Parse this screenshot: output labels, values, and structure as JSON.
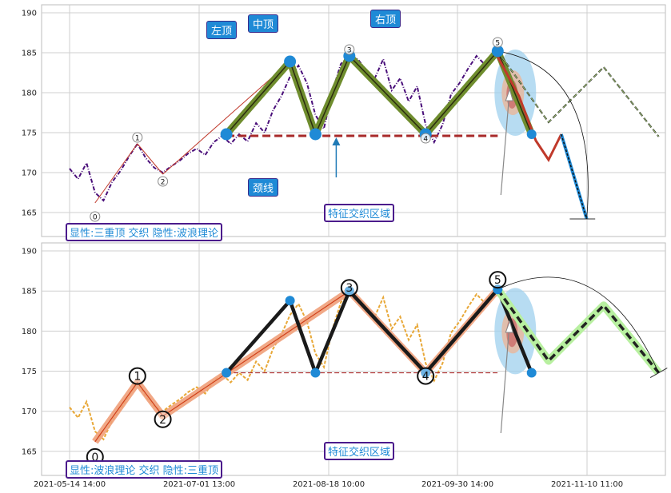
{
  "chart_data": [
    {
      "type": "line",
      "panel": "top",
      "ylim": [
        162,
        191
      ],
      "yticks": [
        165,
        170,
        175,
        180,
        185,
        190
      ],
      "x_labels": [
        "2021-05-14 14:00",
        "2021-07-01 13:00",
        "2021-08-18 10:00",
        "2021-09-30 14:00",
        "2021-11-10 11:00"
      ],
      "grid": true,
      "point_labels": [
        "0",
        "1",
        "2",
        "3",
        "4",
        "5"
      ],
      "annotations": {
        "left_top": "左顶",
        "mid_top": "中顶",
        "right_top": "右顶",
        "neckline": "颈线",
        "zone": "特征交织区域",
        "legend": "显性:三重顶 交织 隐性:波浪理论"
      },
      "price_series": [
        [
          0,
          170.5
        ],
        [
          2,
          169.2
        ],
        [
          4,
          171.2
        ],
        [
          6,
          167.5
        ],
        [
          8,
          166.5
        ],
        [
          10,
          168.8
        ],
        [
          12,
          170.2
        ],
        [
          14,
          172.0
        ],
        [
          16,
          173.6
        ],
        [
          18,
          171.8
        ],
        [
          20,
          170.6
        ],
        [
          22,
          170.0
        ],
        [
          24,
          170.8
        ],
        [
          26,
          171.5
        ],
        [
          28,
          172.4
        ],
        [
          30,
          173.0
        ],
        [
          32,
          172.2
        ],
        [
          34,
          173.8
        ],
        [
          36,
          174.6
        ],
        [
          38,
          173.6
        ],
        [
          40,
          174.8
        ],
        [
          42,
          173.9
        ],
        [
          44,
          176.2
        ],
        [
          46,
          175.0
        ],
        [
          48,
          177.8
        ],
        [
          50,
          179.6
        ],
        [
          52,
          182.0
        ],
        [
          54,
          183.4
        ],
        [
          56,
          181.2
        ],
        [
          58,
          177.2
        ],
        [
          60,
          175.5
        ],
        [
          62,
          180.2
        ],
        [
          64,
          183.6
        ],
        [
          66,
          184.6
        ],
        [
          68,
          184.2
        ],
        [
          70,
          182.8
        ],
        [
          72,
          181.8
        ],
        [
          74,
          184.2
        ],
        [
          76,
          180.3
        ],
        [
          78,
          181.8
        ],
        [
          80,
          178.9
        ],
        [
          82,
          180.8
        ],
        [
          84,
          176.0
        ],
        [
          86,
          173.8
        ],
        [
          88,
          176.0
        ],
        [
          90,
          179.8
        ],
        [
          92,
          181.2
        ],
        [
          94,
          183.0
        ],
        [
          96,
          184.6
        ],
        [
          98,
          183.5
        ],
        [
          100,
          184.8
        ],
        [
          101,
          184.4
        ]
      ],
      "swing_points": [
        {
          "label": "0",
          "x": 6,
          "y": 166.2
        },
        {
          "label": "1",
          "x": 16,
          "y": 173.6
        },
        {
          "label": "2",
          "x": 22,
          "y": 169.8
        },
        {
          "label": "3",
          "x": 66,
          "y": 185.2
        },
        {
          "label": "4",
          "x": 84,
          "y": 174.8
        },
        {
          "label": "5",
          "x": 101,
          "y": 185.2
        }
      ],
      "pattern_points": [
        {
          "x": 37,
          "y": 174.8
        },
        {
          "x": 52,
          "y": 183.9
        },
        {
          "x": 58,
          "y": 174.8
        },
        {
          "x": 66,
          "y": 184.6
        },
        {
          "x": 84,
          "y": 174.8
        },
        {
          "x": 101,
          "y": 185.2
        },
        {
          "x": 109,
          "y": 174.8
        }
      ],
      "neckline_y": 174.6,
      "wave_projection": [
        [
          101,
          185.2
        ],
        [
          113,
          176.3
        ],
        [
          126,
          183.2
        ],
        [
          139,
          174.5
        ]
      ],
      "decline_projection": [
        [
          101,
          184.5
        ],
        [
          106,
          179.6
        ],
        [
          110,
          174.0
        ],
        [
          113,
          171.6
        ],
        [
          116,
          174.8
        ],
        [
          122,
          164.2
        ]
      ]
    },
    {
      "type": "line",
      "panel": "bottom",
      "ylim": [
        162,
        191
      ],
      "yticks": [
        165,
        170,
        175,
        180,
        185,
        190
      ],
      "x_labels": [
        "2021-05-14 14:00",
        "2021-07-01 13:00",
        "2021-08-18 10:00",
        "2021-09-30 14:00",
        "2021-11-10 11:00"
      ],
      "grid": true,
      "point_labels": [
        "0",
        "1",
        "2",
        "3",
        "4",
        "5"
      ],
      "annotations": {
        "zone": "特征交织区域",
        "legend": "显性:波浪理论 交织 隐性:三重顶"
      },
      "price_series": [
        [
          0,
          170.5
        ],
        [
          2,
          169.2
        ],
        [
          4,
          171.2
        ],
        [
          6,
          167.5
        ],
        [
          8,
          166.5
        ],
        [
          10,
          168.8
        ],
        [
          12,
          170.2
        ],
        [
          14,
          172.0
        ],
        [
          16,
          173.6
        ],
        [
          18,
          171.8
        ],
        [
          20,
          170.6
        ],
        [
          22,
          170.0
        ],
        [
          24,
          170.8
        ],
        [
          26,
          171.5
        ],
        [
          28,
          172.4
        ],
        [
          30,
          173.0
        ],
        [
          32,
          172.2
        ],
        [
          34,
          173.8
        ],
        [
          36,
          174.6
        ],
        [
          38,
          173.6
        ],
        [
          40,
          174.8
        ],
        [
          42,
          173.9
        ],
        [
          44,
          176.2
        ],
        [
          46,
          175.0
        ],
        [
          48,
          177.8
        ],
        [
          50,
          179.6
        ],
        [
          52,
          182.0
        ],
        [
          54,
          183.4
        ],
        [
          56,
          181.2
        ],
        [
          58,
          177.2
        ],
        [
          60,
          175.5
        ],
        [
          62,
          180.2
        ],
        [
          64,
          183.6
        ],
        [
          66,
          184.6
        ],
        [
          68,
          184.2
        ],
        [
          70,
          182.8
        ],
        [
          72,
          181.8
        ],
        [
          74,
          184.2
        ],
        [
          76,
          180.3
        ],
        [
          78,
          181.8
        ],
        [
          80,
          178.9
        ],
        [
          82,
          180.8
        ],
        [
          84,
          176.0
        ],
        [
          86,
          173.8
        ],
        [
          88,
          176.0
        ],
        [
          90,
          179.8
        ],
        [
          92,
          181.2
        ],
        [
          94,
          183.0
        ],
        [
          96,
          184.6
        ],
        [
          98,
          183.5
        ],
        [
          100,
          184.8
        ],
        [
          101,
          184.4
        ]
      ],
      "swing_points": [
        {
          "label": "0",
          "x": 6,
          "y": 166.2
        },
        {
          "label": "1",
          "x": 16,
          "y": 173.6
        },
        {
          "label": "2",
          "x": 22,
          "y": 169.4
        },
        {
          "label": "3",
          "x": 66,
          "y": 185.0
        },
        {
          "label": "4",
          "x": 84,
          "y": 174.8
        },
        {
          "label": "5",
          "x": 101,
          "y": 185.2
        }
      ],
      "pattern_points": [
        {
          "x": 37,
          "y": 174.8
        },
        {
          "x": 52,
          "y": 183.8
        },
        {
          "x": 58,
          "y": 174.8
        },
        {
          "x": 66,
          "y": 185.0
        },
        {
          "x": 84,
          "y": 174.8
        },
        {
          "x": 101,
          "y": 185.2
        },
        {
          "x": 109,
          "y": 174.8
        }
      ],
      "neckline_y": 174.8,
      "wave_projection": [
        [
          101,
          185.2
        ],
        [
          113,
          176.3
        ],
        [
          126,
          183.2
        ],
        [
          139,
          174.8
        ]
      ],
      "decline_projection": []
    }
  ],
  "colors": {
    "grid": "#cfcfcf",
    "price_top": "#4a0f7a",
    "price_bottom": "#e8a838",
    "pattern_green": "#6f8d2e",
    "pattern_black": "#1a1a1a",
    "marker_blue": "#1f8ad6",
    "neckline_red": "#a82a2a",
    "wave_salmon": "#f0a07a",
    "projection_lightgreen": "#b8f0a0",
    "projection_dash": "#222222",
    "ellipse_outer": "#9fd0ee",
    "ellipse_mid": "#e8b8a0",
    "ellipse_inner": "#c86060"
  }
}
